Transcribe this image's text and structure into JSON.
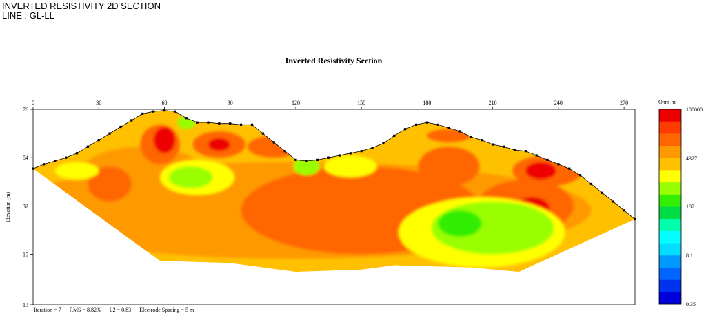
{
  "header": {
    "line1": "INVERTED RESISTIVITY 2D SECTION",
    "line2": "LINE : GL-LL"
  },
  "chart_data": {
    "type": "heatmap",
    "title": "Inverted Resistivity Section",
    "xlabel": "",
    "ylabel": "Elevation (m)",
    "xlim": [
      0,
      275
    ],
    "ylim": [
      -13,
      76
    ],
    "x_ticks": [
      0,
      30,
      60,
      90,
      120,
      150,
      180,
      210,
      240,
      270
    ],
    "y_ticks": [
      76,
      54,
      32,
      10,
      -13
    ],
    "colorbar": {
      "unit": "Ohm-m",
      "labels": [
        "100000",
        "4327",
        "187",
        "8.1",
        "0.35"
      ],
      "colors": [
        "#ee0000",
        "#ff3c00",
        "#ff6600",
        "#ff9900",
        "#ffc000",
        "#ffff00",
        "#99ff00",
        "#33ee00",
        "#00dd44",
        "#00ffaa",
        "#00ffff",
        "#00ddff",
        "#0099ff",
        "#0066ff",
        "#0033ee",
        "#0000dd"
      ]
    },
    "surface": [
      [
        0,
        49
      ],
      [
        5,
        51
      ],
      [
        10,
        52.5
      ],
      [
        15,
        54
      ],
      [
        20,
        56
      ],
      [
        25,
        59
      ],
      [
        30,
        62
      ],
      [
        35,
        65
      ],
      [
        40,
        68
      ],
      [
        45,
        71
      ],
      [
        50,
        74
      ],
      [
        55,
        75
      ],
      [
        60,
        75.5
      ],
      [
        65,
        75
      ],
      [
        70,
        72
      ],
      [
        75,
        70
      ],
      [
        80,
        70
      ],
      [
        85,
        69.5
      ],
      [
        90,
        69.5
      ],
      [
        95,
        69
      ],
      [
        100,
        69
      ],
      [
        105,
        65
      ],
      [
        110,
        61
      ],
      [
        115,
        57
      ],
      [
        120,
        53
      ],
      [
        125,
        52.5
      ],
      [
        130,
        53
      ],
      [
        135,
        54
      ],
      [
        140,
        55
      ],
      [
        145,
        56
      ],
      [
        150,
        57
      ],
      [
        155,
        58.5
      ],
      [
        160,
        60.5
      ],
      [
        165,
        64
      ],
      [
        170,
        67
      ],
      [
        175,
        69
      ],
      [
        180,
        70
      ],
      [
        185,
        69
      ],
      [
        190,
        67.5
      ],
      [
        195,
        66
      ],
      [
        200,
        63.5
      ],
      [
        205,
        62
      ],
      [
        210,
        60
      ],
      [
        215,
        59
      ],
      [
        220,
        57.5
      ],
      [
        225,
        57
      ],
      [
        230,
        55
      ],
      [
        235,
        53
      ],
      [
        240,
        51
      ],
      [
        245,
        49
      ],
      [
        250,
        46
      ],
      [
        255,
        42
      ],
      [
        260,
        38
      ],
      [
        265,
        34
      ],
      [
        270,
        30
      ],
      [
        275,
        26
      ]
    ],
    "base": [
      [
        0,
        49
      ],
      [
        58,
        7
      ],
      [
        90,
        6
      ],
      [
        120,
        2
      ],
      [
        150,
        3
      ],
      [
        165,
        5
      ],
      [
        200,
        4
      ],
      [
        222,
        2
      ],
      [
        275,
        26
      ]
    ],
    "blobs": [
      {
        "x": 120,
        "y": 30,
        "rx": 135,
        "ry": 22,
        "color": "#ff9900"
      },
      {
        "x": 50,
        "y": 45,
        "rx": 30,
        "ry": 14,
        "color": "#ff9900"
      },
      {
        "x": 150,
        "y": 30,
        "rx": 55,
        "ry": 20,
        "color": "#ff6600"
      },
      {
        "x": 35,
        "y": 42,
        "rx": 10,
        "ry": 8,
        "color": "#ff6600"
      },
      {
        "x": 225,
        "y": 32,
        "rx": 22,
        "ry": 12,
        "color": "#ff6600"
      },
      {
        "x": 228,
        "y": 31,
        "rx": 8,
        "ry": 5,
        "color": "#ee0000"
      },
      {
        "x": 190,
        "y": 50,
        "rx": 14,
        "ry": 9,
        "color": "#ff6600"
      },
      {
        "x": 205,
        "y": 20,
        "rx": 38,
        "ry": 16,
        "color": "#ffff00"
      },
      {
        "x": 210,
        "y": 22,
        "rx": 28,
        "ry": 12,
        "color": "#99ff00"
      },
      {
        "x": 195,
        "y": 24,
        "rx": 10,
        "ry": 6,
        "color": "#33ee00"
      },
      {
        "x": 235,
        "y": 48,
        "rx": 16,
        "ry": 7,
        "color": "#ff6600"
      },
      {
        "x": 232,
        "y": 48,
        "rx": 7,
        "ry": 4,
        "color": "#ee0000"
      },
      {
        "x": 58,
        "y": 60,
        "rx": 9,
        "ry": 9,
        "color": "#ff6600"
      },
      {
        "x": 60,
        "y": 62,
        "rx": 5,
        "ry": 6,
        "color": "#ee0000"
      },
      {
        "x": 85,
        "y": 60,
        "rx": 12,
        "ry": 6,
        "color": "#ff6600"
      },
      {
        "x": 85,
        "y": 60,
        "rx": 5,
        "ry": 3,
        "color": "#ee0000"
      },
      {
        "x": 75,
        "y": 45,
        "rx": 17,
        "ry": 8,
        "color": "#ffff00"
      },
      {
        "x": 72,
        "y": 45,
        "rx": 10,
        "ry": 5,
        "color": "#99ff00"
      },
      {
        "x": 110,
        "y": 59,
        "rx": 12,
        "ry": 5,
        "color": "#ff6600"
      },
      {
        "x": 125,
        "y": 50,
        "rx": 6,
        "ry": 4,
        "color": "#99ff00"
      },
      {
        "x": 145,
        "y": 50,
        "rx": 12,
        "ry": 5,
        "color": "#ffff00"
      },
      {
        "x": 190,
        "y": 64,
        "rx": 10,
        "ry": 3,
        "color": "#ff6600"
      },
      {
        "x": 206,
        "y": 66,
        "rx": 5,
        "ry": 3,
        "color": "#ee0000"
      },
      {
        "x": 70,
        "y": 70,
        "rx": 4,
        "ry": 3,
        "color": "#99ff00"
      },
      {
        "x": 20,
        "y": 48,
        "rx": 10,
        "ry": 4,
        "color": "#ffff00"
      }
    ],
    "footer": {
      "iteration": "Iteration = 7",
      "rms": "RMS = 8.82%",
      "l2": "L2 = 0.83",
      "spacing": "Electrode Spacing = 5 m"
    }
  }
}
